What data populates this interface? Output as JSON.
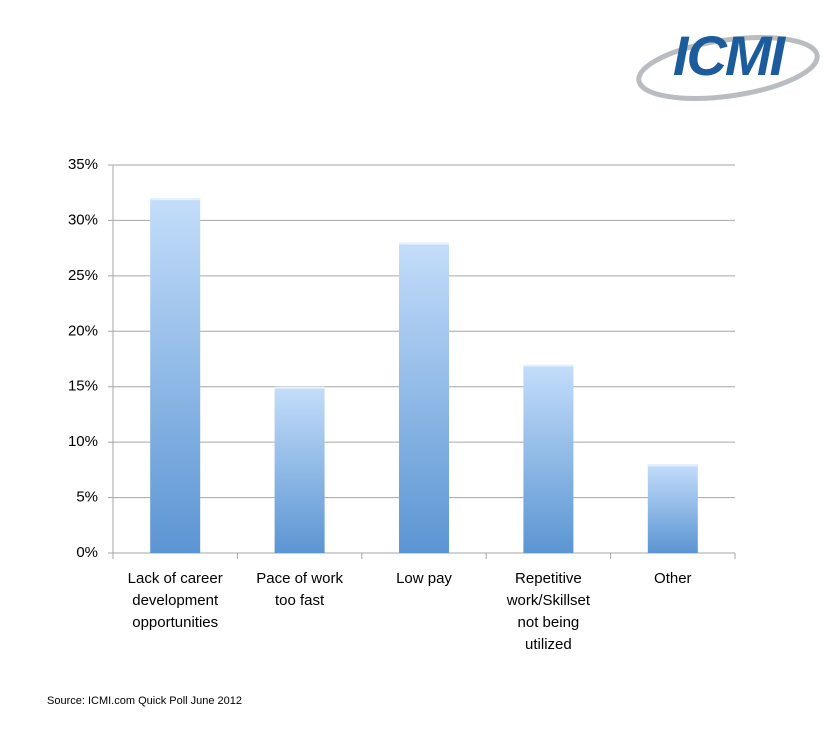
{
  "logo": "ICMI",
  "chart_data": {
    "type": "bar",
    "categories": [
      "Lack of career\ndevelopment\nopportunities",
      "Pace of work\ntoo fast",
      "Low pay",
      "Repetitive\nwork/Skillset\nnot being\nutilized",
      "Other"
    ],
    "values": [
      32,
      15,
      28,
      17,
      8
    ],
    "color": "#6fa8e3",
    "ylim": [
      0,
      35
    ],
    "yticks": [
      {
        "value": 0,
        "label": "0%"
      },
      {
        "value": 5,
        "label": "5%"
      },
      {
        "value": 10,
        "label": "10%"
      },
      {
        "value": 15,
        "label": "15%"
      },
      {
        "value": 20,
        "label": "20%"
      },
      {
        "value": 25,
        "label": "25%"
      },
      {
        "value": 30,
        "label": "30%"
      },
      {
        "value": 35,
        "label": "35%"
      }
    ],
    "grid": true,
    "source": "Source: ICMI.com Quick Poll June 2012"
  }
}
